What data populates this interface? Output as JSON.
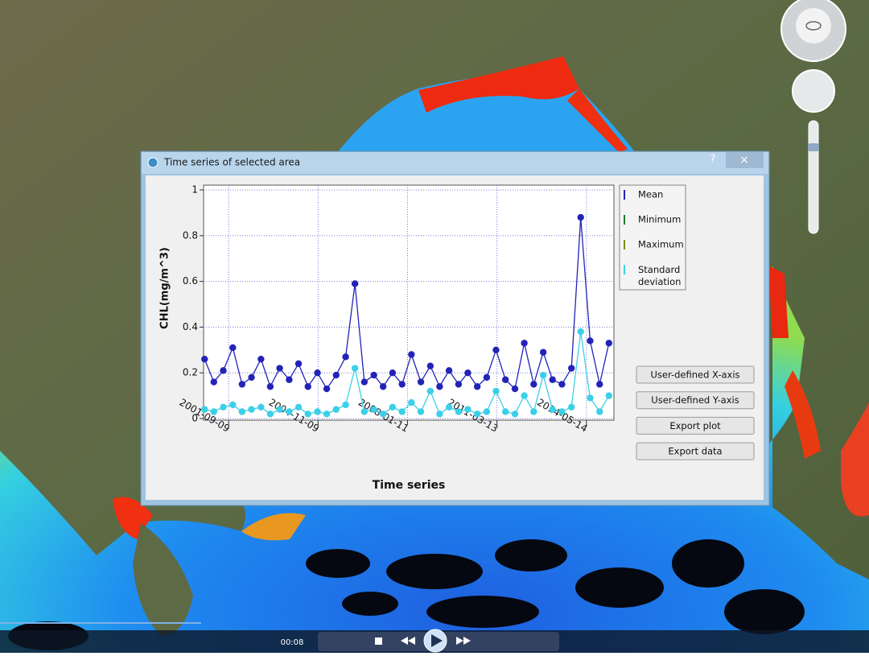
{
  "window": {
    "title": "Time series of selected area",
    "help": "?",
    "close": "×"
  },
  "buttons": [
    "User-defined X-axis",
    "User-defined Y-axis",
    "Export plot",
    "Export data"
  ],
  "player": {
    "time": "00:08"
  },
  "chart_data": {
    "type": "line",
    "xlabel": "Time series",
    "ylabel": "CHL(mg/m^3)",
    "x": [
      "2000-11-01",
      "2001-03-01",
      "2001-07-01",
      "2001-11-01",
      "2002-03-01",
      "2002-07-01",
      "2002-11-01",
      "2003-03-01",
      "2003-07-01",
      "2003-11-01",
      "2004-03-01",
      "2004-07-01",
      "2004-11-01",
      "2005-03-01",
      "2005-07-01",
      "2005-11-01",
      "2006-03-01",
      "2006-07-01",
      "2006-11-01",
      "2007-03-01",
      "2007-07-01",
      "2007-11-01",
      "2008-03-01",
      "2008-07-01",
      "2008-11-01",
      "2009-03-01",
      "2009-07-01",
      "2009-11-01",
      "2010-03-01",
      "2010-07-01",
      "2010-11-01",
      "2011-03-01",
      "2011-07-01",
      "2011-11-01",
      "2012-03-01",
      "2012-07-01",
      "2012-11-01",
      "2013-03-01",
      "2013-07-01",
      "2013-11-01",
      "2014-03-01",
      "2014-07-01",
      "2014-11-01",
      "2015-03-01"
    ],
    "series": [
      {
        "name": "Mean",
        "color": "#2323b8",
        "values": [
          0.26,
          0.16,
          0.21,
          0.31,
          0.15,
          0.18,
          0.26,
          0.14,
          0.22,
          0.17,
          0.24,
          0.14,
          0.2,
          0.13,
          0.19,
          0.27,
          0.59,
          0.16,
          0.19,
          0.14,
          0.2,
          0.15,
          0.28,
          0.16,
          0.23,
          0.14,
          0.21,
          0.15,
          0.2,
          0.14,
          0.18,
          0.3,
          0.17,
          0.13,
          0.33,
          0.15,
          0.29,
          0.17,
          0.15,
          0.22,
          0.88,
          0.34,
          0.15,
          0.33
        ]
      },
      {
        "name": "Minimum",
        "color": "#1e7a2a",
        "values": [
          null,
          null,
          null,
          null,
          null,
          null,
          null,
          null,
          null,
          null,
          null,
          null,
          null,
          null,
          null,
          null,
          null,
          null,
          null,
          null,
          null,
          null,
          null,
          null,
          null,
          null,
          null,
          null,
          null,
          null,
          null,
          null,
          null,
          null,
          null,
          null,
          null,
          null,
          null,
          null,
          null,
          null,
          null,
          null
        ]
      },
      {
        "name": "Maximum",
        "color": "#7a8a1e",
        "values": [
          null,
          null,
          null,
          null,
          null,
          null,
          null,
          null,
          null,
          null,
          null,
          null,
          null,
          null,
          null,
          null,
          null,
          null,
          null,
          null,
          null,
          null,
          null,
          null,
          null,
          null,
          null,
          null,
          null,
          null,
          null,
          null,
          null,
          null,
          null,
          null,
          null,
          null,
          null,
          null,
          null,
          null,
          null,
          null
        ]
      },
      {
        "name": "Standard deviation",
        "color": "#3ccfe8",
        "values": [
          0.04,
          0.03,
          0.05,
          0.06,
          0.03,
          0.04,
          0.05,
          0.02,
          0.04,
          0.03,
          0.05,
          0.02,
          0.03,
          0.02,
          0.04,
          0.06,
          0.22,
          0.03,
          0.04,
          0.02,
          0.05,
          0.03,
          0.07,
          0.03,
          0.12,
          0.02,
          0.05,
          0.03,
          0.04,
          0.02,
          0.03,
          0.12,
          0.03,
          0.02,
          0.1,
          0.03,
          0.19,
          0.04,
          0.03,
          0.05,
          0.38,
          0.09,
          0.03,
          0.1
        ]
      }
    ],
    "xlim": [
      "2000-10-19",
      "2015-05-05"
    ],
    "xticks": [
      "2001-09-09",
      "2004-11-09",
      "2008-01-11",
      "2011-03-13",
      "2014-05-14"
    ],
    "ylim": [
      0,
      1
    ],
    "yticks": [
      0,
      0.2,
      0.4,
      0.6,
      0.8,
      1
    ],
    "grid": true
  }
}
